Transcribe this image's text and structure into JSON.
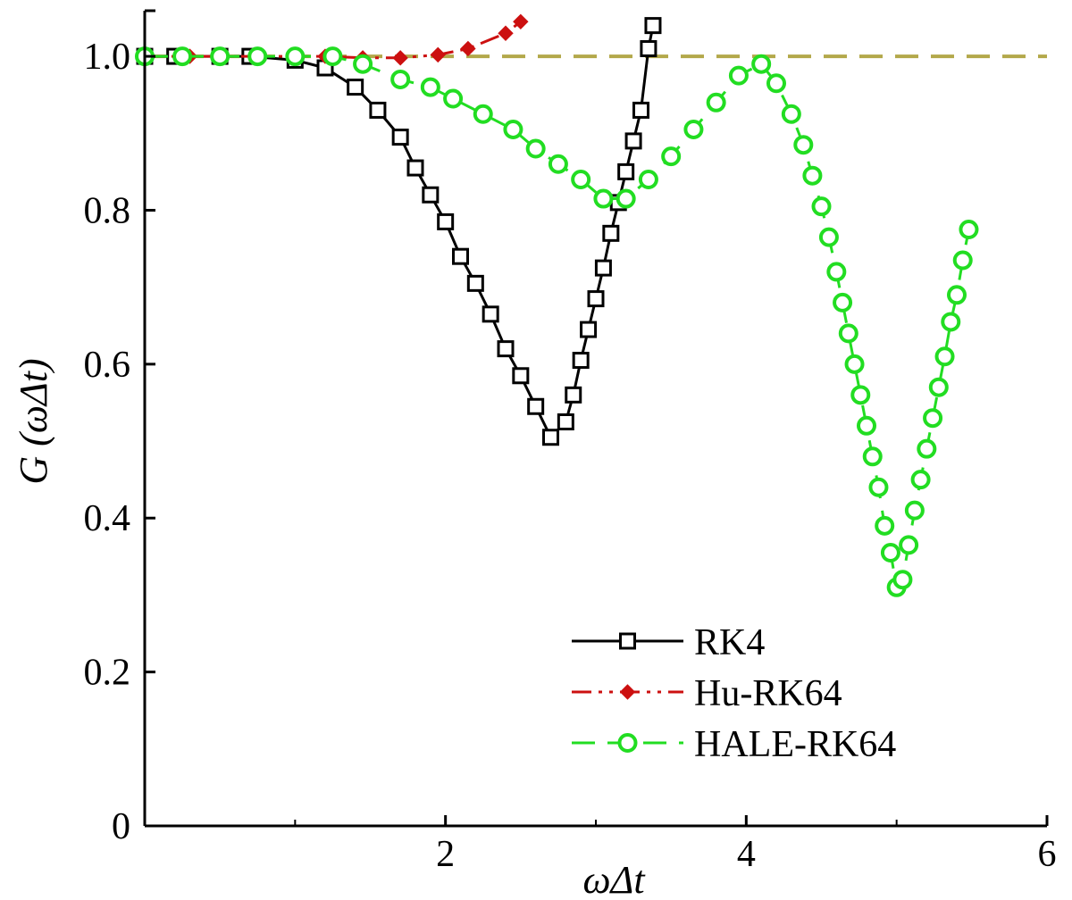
{
  "chart_data": {
    "type": "line",
    "xlabel": "ωΔt",
    "ylabel": "G (ωΔt)",
    "xlim": [
      0,
      6
    ],
    "ylim": [
      0,
      1.05
    ],
    "xticks": [
      2,
      4,
      6
    ],
    "yticks": [
      0,
      0.2,
      0.4,
      0.6,
      0.8,
      1.0
    ],
    "xtick_labels": [
      "2",
      "4",
      "6"
    ],
    "ytick_labels": [
      "0",
      "0.2",
      "0.4",
      "0.6",
      "0.8",
      "1.0"
    ],
    "grid": false,
    "legend_position": "bottom-right",
    "reference_line": {
      "y": 1.0,
      "color": "#b3a84a",
      "style": "dashed"
    },
    "series": [
      {
        "name": "RK4",
        "color": "#000000",
        "line_style": "solid",
        "marker": "square",
        "x": [
          0,
          0.2,
          0.5,
          0.7,
          1.0,
          1.2,
          1.4,
          1.55,
          1.7,
          1.8,
          1.9,
          2.0,
          2.1,
          2.2,
          2.3,
          2.4,
          2.5,
          2.6,
          2.7,
          2.8,
          2.85,
          2.9,
          2.95,
          3.0,
          3.05,
          3.1,
          3.15,
          3.2,
          3.25,
          3.3,
          3.35,
          3.38
        ],
        "y": [
          1.0,
          1.0,
          1.0,
          1.0,
          0.995,
          0.985,
          0.96,
          0.93,
          0.895,
          0.855,
          0.82,
          0.785,
          0.74,
          0.705,
          0.665,
          0.62,
          0.585,
          0.545,
          0.505,
          0.525,
          0.56,
          0.605,
          0.645,
          0.685,
          0.725,
          0.77,
          0.81,
          0.85,
          0.89,
          0.93,
          1.01,
          1.04
        ]
      },
      {
        "name": "Hu-RK64",
        "color": "#cc1010",
        "line_style": "dashdotdot",
        "marker": "diamond",
        "x": [
          0,
          0.3,
          0.5,
          0.75,
          1.0,
          1.2,
          1.45,
          1.7,
          1.95,
          2.15,
          2.4,
          2.5
        ],
        "y": [
          1.0,
          1.0,
          1.0,
          1.0,
          1.0,
          1.0,
          0.998,
          0.998,
          1.002,
          1.01,
          1.03,
          1.045
        ]
      },
      {
        "name": "HALE-RK64",
        "color": "#22dd22",
        "line_style": "dashed",
        "marker": "circle",
        "x": [
          0,
          0.25,
          0.5,
          0.75,
          1.0,
          1.25,
          1.45,
          1.7,
          1.9,
          2.05,
          2.25,
          2.45,
          2.6,
          2.75,
          2.9,
          3.05,
          3.2,
          3.35,
          3.5,
          3.65,
          3.8,
          3.95,
          4.1,
          4.2,
          4.3,
          4.38,
          4.44,
          4.5,
          4.55,
          4.6,
          4.64,
          4.68,
          4.72,
          4.76,
          4.8,
          4.84,
          4.88,
          4.92,
          4.96,
          5.0,
          5.04,
          5.08,
          5.12,
          5.16,
          5.2,
          5.24,
          5.28,
          5.32,
          5.36,
          5.4,
          5.44,
          5.48
        ],
        "y": [
          1.0,
          1.0,
          1.0,
          1.0,
          1.0,
          1.0,
          0.99,
          0.97,
          0.96,
          0.945,
          0.925,
          0.905,
          0.88,
          0.86,
          0.84,
          0.815,
          0.815,
          0.84,
          0.87,
          0.905,
          0.94,
          0.975,
          0.99,
          0.965,
          0.925,
          0.885,
          0.845,
          0.805,
          0.765,
          0.72,
          0.68,
          0.64,
          0.6,
          0.56,
          0.52,
          0.48,
          0.44,
          0.39,
          0.355,
          0.31,
          0.32,
          0.365,
          0.41,
          0.45,
          0.49,
          0.53,
          0.57,
          0.61,
          0.655,
          0.69,
          0.735,
          0.775
        ]
      }
    ]
  }
}
